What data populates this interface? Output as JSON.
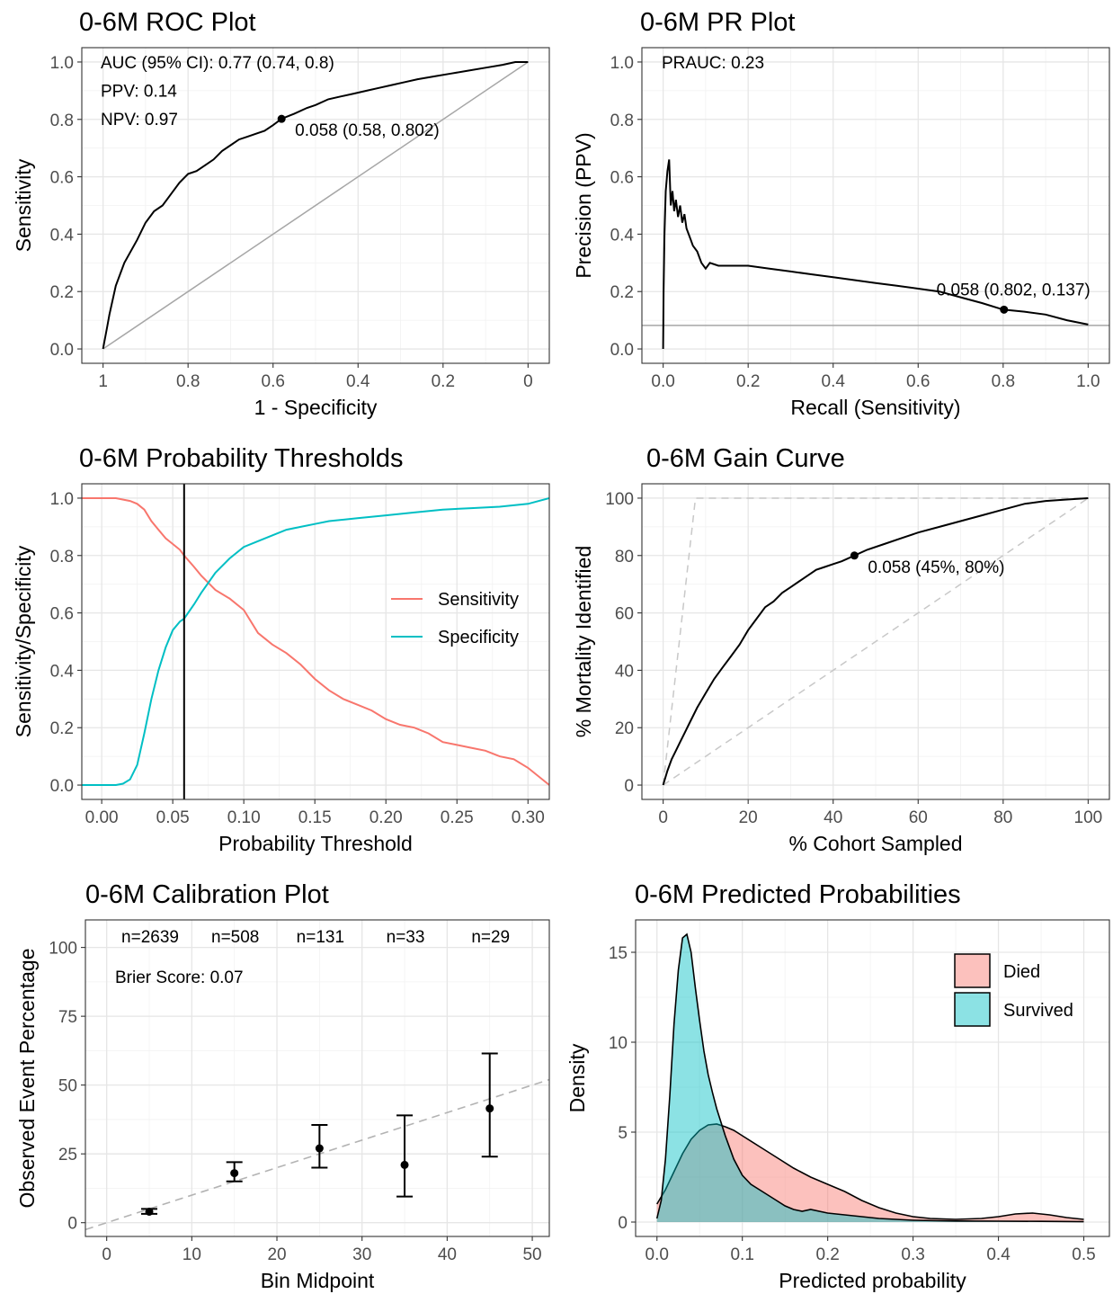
{
  "chart_data": [
    {
      "id": "roc",
      "type": "line",
      "title": "0-6M ROC Plot",
      "xlabel": "1 - Specificity",
      "ylabel": "Sensitivity",
      "x_reversed": true,
      "xlim": [
        1.05,
        -0.05
      ],
      "ylim": [
        -0.05,
        1.05
      ],
      "x_ticks": [
        1,
        0.8,
        0.6,
        0.4,
        0.2,
        0
      ],
      "x_tick_labels": [
        "1",
        "0.8",
        "0.6",
        "0.4",
        "0.2",
        "0"
      ],
      "y_ticks": [
        0,
        0.2,
        0.4,
        0.6,
        0.8,
        1.0
      ],
      "y_tick_labels": [
        "0.0",
        "0.2",
        "0.4",
        "0.6",
        "0.8",
        "1.0"
      ],
      "annotations": [
        "AUC (95% CI): 0.77 (0.74, 0.8)",
        "PPV: 0.14",
        "NPV: 0.97"
      ],
      "reference_line": {
        "from": [
          1,
          0
        ],
        "to": [
          0,
          1
        ],
        "color": "#a6a6a6"
      },
      "series": [
        {
          "x": [
            1,
            0.99,
            0.985,
            0.97,
            0.95,
            0.92,
            0.9,
            0.88,
            0.86,
            0.84,
            0.82,
            0.8,
            0.78,
            0.76,
            0.74,
            0.72,
            0.7,
            0.68,
            0.66,
            0.64,
            0.62,
            0.6,
            0.58,
            0.55,
            0.52,
            0.5,
            0.47,
            0.44,
            0.41,
            0.38,
            0.35,
            0.32,
            0.29,
            0.26,
            0.22,
            0.18,
            0.14,
            0.1,
            0.06,
            0.03,
            0
          ],
          "y": [
            0,
            0.08,
            0.12,
            0.22,
            0.3,
            0.38,
            0.44,
            0.48,
            0.5,
            0.54,
            0.58,
            0.61,
            0.62,
            0.64,
            0.66,
            0.69,
            0.71,
            0.73,
            0.74,
            0.75,
            0.76,
            0.78,
            0.802,
            0.82,
            0.84,
            0.85,
            0.87,
            0.88,
            0.89,
            0.9,
            0.91,
            0.92,
            0.93,
            0.94,
            0.95,
            0.96,
            0.97,
            0.98,
            0.99,
            1.0,
            1.0
          ]
        }
      ],
      "marker": {
        "x": 0.58,
        "y": 0.802,
        "label": "0.058 (0.58, 0.802)"
      }
    },
    {
      "id": "pr",
      "type": "line",
      "title": "0-6M PR Plot",
      "xlabel": "Recall (Sensitivity)",
      "ylabel": "Precision (PPV)",
      "xlim": [
        -0.05,
        1.05
      ],
      "ylim": [
        -0.05,
        1.05
      ],
      "x_ticks": [
        0,
        0.2,
        0.4,
        0.6,
        0.8,
        1.0
      ],
      "x_tick_labels": [
        "0.0",
        "0.2",
        "0.4",
        "0.6",
        "0.8",
        "1.0"
      ],
      "y_ticks": [
        0,
        0.2,
        0.4,
        0.6,
        0.8,
        1.0
      ],
      "y_tick_labels": [
        "0.0",
        "0.2",
        "0.4",
        "0.6",
        "0.8",
        "1.0"
      ],
      "annotations": [
        "PRAUC: 0.23"
      ],
      "baseline": {
        "y": 0.082,
        "color": "#a6a6a6"
      },
      "series": [
        {
          "x": [
            0,
            0.001,
            0.003,
            0.006,
            0.01,
            0.014,
            0.018,
            0.022,
            0.026,
            0.03,
            0.035,
            0.04,
            0.045,
            0.05,
            0.055,
            0.06,
            0.065,
            0.07,
            0.08,
            0.09,
            0.1,
            0.11,
            0.13,
            0.15,
            0.2,
            0.25,
            0.3,
            0.35,
            0.4,
            0.45,
            0.5,
            0.55,
            0.6,
            0.65,
            0.7,
            0.75,
            0.8,
            0.85,
            0.9,
            0.95,
            1.0
          ],
          "y": [
            0,
            0.2,
            0.4,
            0.55,
            0.62,
            0.66,
            0.5,
            0.55,
            0.48,
            0.52,
            0.46,
            0.5,
            0.44,
            0.47,
            0.42,
            0.4,
            0.38,
            0.36,
            0.34,
            0.3,
            0.28,
            0.3,
            0.29,
            0.29,
            0.29,
            0.28,
            0.27,
            0.26,
            0.25,
            0.24,
            0.23,
            0.22,
            0.21,
            0.2,
            0.18,
            0.16,
            0.137,
            0.13,
            0.12,
            0.1,
            0.085
          ]
        }
      ],
      "marker": {
        "x": 0.802,
        "y": 0.137,
        "label": "0.058 (0.802, 0.137)"
      }
    },
    {
      "id": "thresholds",
      "type": "line",
      "title": "0-6M Probability Thresholds",
      "xlabel": "Probability Threshold",
      "ylabel": "Sensitivity/Specificity",
      "xlim": [
        -0.014,
        0.315
      ],
      "ylim": [
        -0.05,
        1.05
      ],
      "x_ticks": [
        0,
        0.05,
        0.1,
        0.15,
        0.2,
        0.25,
        0.3
      ],
      "x_tick_labels": [
        "0.00",
        "0.05",
        "0.10",
        "0.15",
        "0.20",
        "0.25",
        "0.30"
      ],
      "y_ticks": [
        0,
        0.2,
        0.4,
        0.6,
        0.8,
        1.0
      ],
      "y_tick_labels": [
        "0.0",
        "0.2",
        "0.4",
        "0.6",
        "0.8",
        "1.0"
      ],
      "vline": 0.058,
      "legend": "right",
      "series": [
        {
          "name": "Sensitivity",
          "color": "#f8766d",
          "x": [
            -0.014,
            0,
            0.01,
            0.02,
            0.025,
            0.03,
            0.035,
            0.04,
            0.045,
            0.05,
            0.055,
            0.058,
            0.065,
            0.07,
            0.08,
            0.09,
            0.1,
            0.11,
            0.12,
            0.13,
            0.14,
            0.15,
            0.16,
            0.17,
            0.18,
            0.19,
            0.2,
            0.21,
            0.22,
            0.23,
            0.24,
            0.25,
            0.26,
            0.27,
            0.28,
            0.29,
            0.3,
            0.315
          ],
          "y": [
            1.0,
            1.0,
            1.0,
            0.99,
            0.98,
            0.96,
            0.92,
            0.89,
            0.86,
            0.84,
            0.82,
            0.8,
            0.76,
            0.73,
            0.68,
            0.65,
            0.61,
            0.53,
            0.49,
            0.46,
            0.42,
            0.37,
            0.33,
            0.3,
            0.28,
            0.26,
            0.23,
            0.21,
            0.2,
            0.18,
            0.15,
            0.14,
            0.13,
            0.12,
            0.1,
            0.09,
            0.06,
            0.0
          ]
        },
        {
          "name": "Specificity",
          "color": "#00bfc4",
          "x": [
            -0.014,
            0,
            0.01,
            0.015,
            0.02,
            0.025,
            0.03,
            0.035,
            0.04,
            0.045,
            0.05,
            0.055,
            0.058,
            0.065,
            0.07,
            0.08,
            0.09,
            0.1,
            0.11,
            0.12,
            0.13,
            0.14,
            0.15,
            0.16,
            0.18,
            0.2,
            0.22,
            0.24,
            0.26,
            0.28,
            0.3,
            0.315
          ],
          "y": [
            0.0,
            0.0,
            0.0,
            0.005,
            0.02,
            0.07,
            0.18,
            0.3,
            0.4,
            0.48,
            0.54,
            0.57,
            0.58,
            0.63,
            0.67,
            0.74,
            0.79,
            0.83,
            0.85,
            0.87,
            0.89,
            0.9,
            0.91,
            0.92,
            0.93,
            0.94,
            0.95,
            0.96,
            0.965,
            0.97,
            0.98,
            1.0
          ]
        }
      ]
    },
    {
      "id": "gain",
      "type": "line",
      "title": "0-6M Gain Curve",
      "xlabel": "% Cohort Sampled",
      "ylabel": "% Mortality Identified",
      "xlim": [
        -5,
        105
      ],
      "ylim": [
        -5,
        105
      ],
      "x_ticks": [
        0,
        20,
        40,
        60,
        80,
        100
      ],
      "x_tick_labels": [
        "0",
        "20",
        "40",
        "60",
        "80",
        "100"
      ],
      "y_ticks": [
        0,
        20,
        40,
        60,
        80,
        100
      ],
      "y_tick_labels": [
        "0",
        "20",
        "40",
        "60",
        "80",
        "100"
      ],
      "reference_lines": [
        {
          "points": [
            [
              0,
              0
            ],
            [
              100,
              100
            ]
          ],
          "style": "dashed",
          "color": "#c8c8c8"
        },
        {
          "points": [
            [
              0,
              0
            ],
            [
              7.6,
              100
            ],
            [
              100,
              100
            ]
          ],
          "style": "dashed",
          "color": "#c8c8c8"
        }
      ],
      "series": [
        {
          "x": [
            0,
            1,
            2,
            3,
            4,
            5,
            6,
            8,
            10,
            12,
            14,
            16,
            18,
            20,
            22,
            24,
            26,
            28,
            30,
            32,
            34,
            36,
            38,
            40,
            42,
            45,
            48,
            52,
            56,
            60,
            65,
            70,
            75,
            80,
            85,
            90,
            95,
            100
          ],
          "y": [
            0,
            5,
            9,
            12,
            15,
            18,
            21,
            27,
            32,
            37,
            41,
            45,
            49,
            54,
            58,
            62,
            64,
            67,
            69,
            71,
            73,
            75,
            76,
            77,
            78,
            80,
            82,
            84,
            86,
            88,
            90,
            92,
            94,
            96,
            98,
            99,
            99.5,
            100
          ]
        }
      ],
      "marker": {
        "x": 45,
        "y": 80,
        "label": "0.058 (45%, 80%)"
      }
    },
    {
      "id": "calibration",
      "type": "scatter",
      "title": "0-6M Calibration Plot",
      "xlabel": "Bin Midpoint",
      "ylabel": "Observed Event Percentage",
      "xlim": [
        -2.5,
        52
      ],
      "ylim": [
        -5,
        110
      ],
      "x_ticks": [
        0,
        10,
        20,
        30,
        40,
        50
      ],
      "x_tick_labels": [
        "0",
        "10",
        "20",
        "30",
        "40",
        "50"
      ],
      "y_ticks": [
        0,
        25,
        50,
        75,
        100
      ],
      "y_tick_labels": [
        "0",
        "25",
        "50",
        "75",
        "100"
      ],
      "annotations": [
        "Brier Score: 0.07"
      ],
      "bin_counts": [
        "n=2639",
        "n=508",
        "n=131",
        "n=33",
        "n=29"
      ],
      "reference_line": {
        "from": [
          -2.5,
          -2.5
        ],
        "to": [
          52,
          52
        ],
        "style": "dashed",
        "color": "#b3b3b3"
      },
      "x": [
        5,
        15,
        25,
        35,
        45
      ],
      "y": [
        4,
        18,
        27,
        21,
        41.5
      ],
      "y_low": [
        3.2,
        15,
        20,
        9.5,
        24
      ],
      "y_high": [
        5,
        22,
        35.5,
        39,
        61.5
      ]
    },
    {
      "id": "density",
      "type": "area",
      "title": "0-6M Predicted Probabilities",
      "xlabel": "Predicted probability",
      "ylabel": "Density",
      "xlim": [
        -0.025,
        0.53
      ],
      "ylim": [
        -0.8,
        16.8
      ],
      "x_ticks": [
        0,
        0.1,
        0.2,
        0.3,
        0.4,
        0.5
      ],
      "x_tick_labels": [
        "0.0",
        "0.1",
        "0.2",
        "0.3",
        "0.4",
        "0.5"
      ],
      "y_ticks": [
        0,
        5,
        10,
        15
      ],
      "y_tick_labels": [
        "0",
        "5",
        "10",
        "15"
      ],
      "legend": "top-right",
      "series": [
        {
          "name": "Died",
          "color": "#f8766d",
          "x": [
            0,
            0.01,
            0.02,
            0.03,
            0.04,
            0.05,
            0.06,
            0.07,
            0.08,
            0.09,
            0.1,
            0.12,
            0.14,
            0.16,
            0.18,
            0.2,
            0.22,
            0.24,
            0.26,
            0.28,
            0.3,
            0.32,
            0.35,
            0.38,
            0.4,
            0.42,
            0.44,
            0.46,
            0.48,
            0.5
          ],
          "y": [
            1.0,
            1.8,
            2.8,
            3.8,
            4.6,
            5.1,
            5.4,
            5.45,
            5.3,
            5.1,
            4.8,
            4.2,
            3.6,
            3.0,
            2.5,
            2.1,
            1.7,
            1.2,
            0.8,
            0.5,
            0.3,
            0.2,
            0.15,
            0.2,
            0.3,
            0.45,
            0.5,
            0.4,
            0.25,
            0.15
          ]
        },
        {
          "name": "Survived",
          "color": "#00bfc4",
          "x": [
            0,
            0.005,
            0.01,
            0.015,
            0.02,
            0.025,
            0.03,
            0.035,
            0.04,
            0.045,
            0.05,
            0.055,
            0.06,
            0.065,
            0.07,
            0.08,
            0.09,
            0.1,
            0.11,
            0.12,
            0.13,
            0.14,
            0.15,
            0.16,
            0.17,
            0.18,
            0.2,
            0.22,
            0.24,
            0.26,
            0.28,
            0.3,
            0.35,
            0.4,
            0.45,
            0.5
          ],
          "y": [
            0.2,
            1.2,
            3.5,
            7.0,
            11.0,
            14.0,
            15.8,
            16.0,
            15.0,
            13.0,
            11.2,
            9.5,
            8.2,
            7.2,
            6.3,
            4.8,
            3.5,
            2.6,
            2.1,
            1.8,
            1.5,
            1.2,
            0.9,
            0.7,
            0.6,
            0.7,
            0.5,
            0.4,
            0.3,
            0.2,
            0.15,
            0.1,
            0.06,
            0.05,
            0.04,
            0.02
          ]
        }
      ]
    }
  ]
}
